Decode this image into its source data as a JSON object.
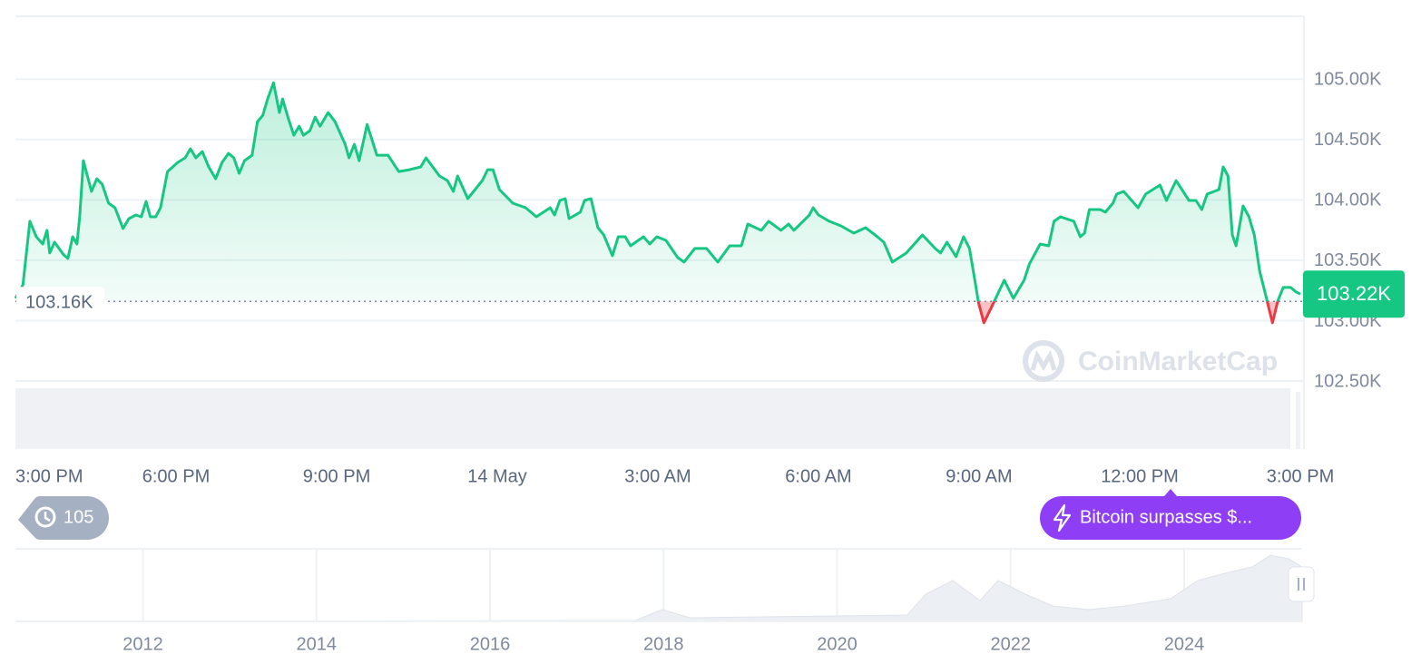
{
  "chart_data": {
    "type": "line",
    "colors": {
      "up": "#16c784",
      "down": "#ea3943"
    },
    "ylim": [
      102200,
      105520
    ],
    "yticks": [
      {
        "value": 105000,
        "label": "105.00K"
      },
      {
        "value": 104500,
        "label": "104.50K"
      },
      {
        "value": 104000,
        "label": "104.00K"
      },
      {
        "value": 103500,
        "label": "103.50K"
      },
      {
        "value": 103000,
        "label": "103.00K"
      },
      {
        "value": 102500,
        "label": "102.50K"
      }
    ],
    "grid": true,
    "xlim": [
      0,
      24
    ],
    "xticks": [
      {
        "value": 0,
        "label": "3:00 PM"
      },
      {
        "value": 3,
        "label": "6:00 PM"
      },
      {
        "value": 6,
        "label": "9:00 PM"
      },
      {
        "value": 9,
        "label": "14 May"
      },
      {
        "value": 12,
        "label": "3:00 AM"
      },
      {
        "value": 15,
        "label": "6:00 AM"
      },
      {
        "value": 18,
        "label": "9:00 AM"
      },
      {
        "value": 21,
        "label": "12:00 PM"
      },
      {
        "value": 24,
        "label": "3:00 PM"
      }
    ],
    "reference": {
      "value": 103160,
      "label": "103.16K"
    },
    "current": {
      "value": 103220,
      "label": "103.22K"
    },
    "x": [
      0.0,
      0.14,
      0.27,
      0.39,
      0.51,
      0.59,
      0.64,
      0.73,
      0.9,
      0.98,
      1.07,
      1.15,
      1.2,
      1.27,
      1.42,
      1.52,
      1.62,
      1.74,
      1.86,
      2.01,
      2.12,
      2.25,
      2.35,
      2.44,
      2.52,
      2.62,
      2.71,
      2.84,
      3.03,
      3.17,
      3.27,
      3.37,
      3.49,
      3.61,
      3.74,
      3.86,
      3.98,
      4.08,
      4.18,
      4.28,
      4.42,
      4.52,
      4.62,
      4.71,
      4.82,
      4.93,
      4.99,
      5.09,
      5.2,
      5.3,
      5.38,
      5.5,
      5.6,
      5.69,
      5.84,
      5.97,
      6.16,
      6.23,
      6.33,
      6.42,
      6.57,
      6.75,
      6.96,
      7.16,
      7.36,
      7.57,
      7.67,
      7.92,
      8.07,
      8.18,
      8.26,
      8.45,
      8.72,
      8.82,
      8.92,
      9.04,
      9.29,
      9.53,
      9.73,
      9.99,
      10.07,
      10.17,
      10.27,
      10.34,
      10.55,
      10.63,
      10.75,
      10.88,
      10.99,
      11.15,
      11.26,
      11.39,
      11.49,
      11.73,
      11.85,
      11.98,
      12.15,
      12.37,
      12.49,
      12.69,
      12.91,
      13.12,
      13.34,
      13.56,
      13.68,
      13.93,
      14.07,
      14.3,
      14.44,
      14.54,
      14.83,
      14.9,
      15.0,
      15.2,
      15.42,
      15.66,
      15.88,
      16.1,
      16.22,
      16.38,
      16.64,
      16.94,
      17.18,
      17.28,
      17.4,
      17.57,
      17.71,
      17.82,
      17.92,
      17.99,
      18.09,
      18.23,
      18.47,
      18.64,
      18.84,
      18.94,
      19.14,
      19.3,
      19.4,
      19.52,
      19.77,
      19.89,
      19.97,
      20.06,
      20.26,
      20.36,
      20.5,
      20.57,
      20.7,
      20.97,
      21.11,
      21.38,
      21.5,
      21.68,
      21.92,
      22.05,
      22.16,
      22.26,
      22.48,
      22.56,
      22.65,
      22.73,
      22.8,
      22.93,
      23.04,
      23.14,
      23.24,
      23.36,
      23.48,
      23.58,
      23.68,
      23.82,
      23.92,
      24.0
    ],
    "values": [
      103185,
      103298,
      103823,
      103695,
      103635,
      103748,
      103560,
      103650,
      103545,
      103515,
      103695,
      103635,
      103860,
      104325,
      104070,
      104175,
      104130,
      103973,
      103935,
      103763,
      103845,
      103875,
      103860,
      103988,
      103860,
      103860,
      103935,
      104235,
      104310,
      104348,
      104423,
      104348,
      104400,
      104273,
      104175,
      104310,
      104385,
      104348,
      104220,
      104325,
      104370,
      104648,
      104700,
      104835,
      104970,
      104723,
      104835,
      104685,
      104535,
      104610,
      104535,
      104573,
      104685,
      104610,
      104723,
      104648,
      104460,
      104348,
      104460,
      104325,
      104625,
      104370,
      104370,
      104235,
      104250,
      104273,
      104348,
      104198,
      104160,
      104070,
      104198,
      104010,
      104160,
      104250,
      104250,
      104085,
      103973,
      103935,
      103860,
      103935,
      103875,
      103995,
      104010,
      103845,
      103898,
      103995,
      104010,
      103770,
      103710,
      103538,
      103695,
      103695,
      103620,
      103695,
      103635,
      103695,
      103665,
      103523,
      103485,
      103598,
      103598,
      103485,
      103620,
      103620,
      103800,
      103748,
      103823,
      103748,
      103800,
      103748,
      103875,
      103935,
      103875,
      103823,
      103785,
      103725,
      103770,
      103695,
      103650,
      103485,
      103560,
      103710,
      103598,
      103560,
      103650,
      103530,
      103695,
      103598,
      103335,
      103148,
      102983,
      103110,
      103335,
      103185,
      103335,
      103470,
      103635,
      103620,
      103823,
      103860,
      103823,
      103695,
      103725,
      103920,
      103920,
      103898,
      103973,
      104048,
      104070,
      103935,
      104048,
      104123,
      103995,
      104160,
      103995,
      103995,
      103920,
      104048,
      104085,
      104273,
      104198,
      103710,
      103620,
      103950,
      103860,
      103710,
      103410,
      103200,
      102983,
      103163,
      103275,
      103275,
      103238,
      103220
    ]
  },
  "events": {
    "count": "105",
    "headline": "Bitcoin surpasses $..."
  },
  "watermark": "CoinMarketCap",
  "navigator": {
    "xlim": [
      2010.53,
      2025.36
    ],
    "xticks": [
      2012,
      2014,
      2016,
      2018,
      2020,
      2022,
      2024
    ]
  }
}
